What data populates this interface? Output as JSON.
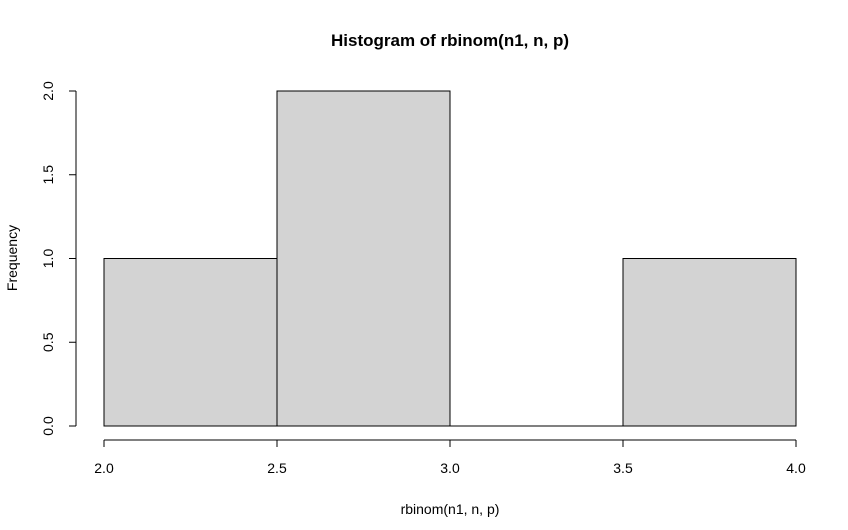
{
  "chart_data": {
    "type": "bar",
    "title": "Histogram of rbinom(n1, n, p)",
    "xlabel": "rbinom(n1, n, p)",
    "ylabel": "Frequency",
    "bins": [
      {
        "start": 2.0,
        "end": 2.5,
        "count": 1
      },
      {
        "start": 2.5,
        "end": 3.0,
        "count": 2
      },
      {
        "start": 3.0,
        "end": 3.5,
        "count": 0
      },
      {
        "start": 3.5,
        "end": 4.0,
        "count": 1
      }
    ],
    "xlim": [
      2.0,
      4.0
    ],
    "ylim": [
      0,
      2.0
    ],
    "xticks": [
      "2.0",
      "2.5",
      "3.0",
      "3.5",
      "4.0"
    ],
    "yticks": [
      "0.0",
      "0.5",
      "1.0",
      "1.5",
      "2.0"
    ],
    "grid": false,
    "colors": {
      "bar_fill": "#d3d3d3",
      "bar_stroke": "#000000"
    }
  }
}
